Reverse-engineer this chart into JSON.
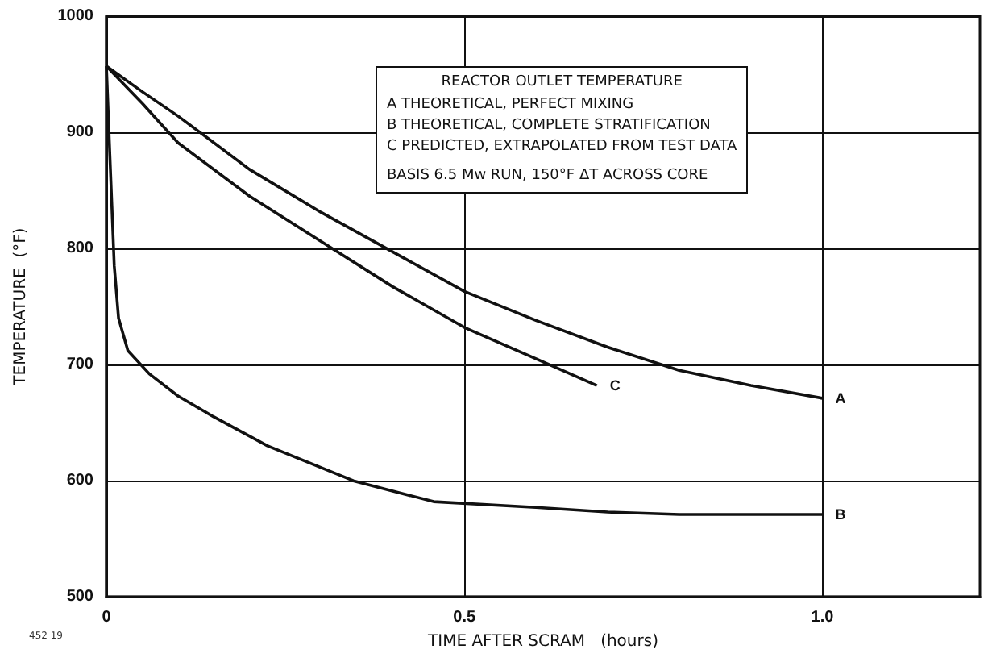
{
  "chart_data": {
    "type": "line",
    "xlabel": "TIME AFTER SCRAM   (hours)",
    "ylabel": "TEMPERATURE  (°F)",
    "xlim": [
      0,
      1.22
    ],
    "xticks": [
      0,
      {
        "value": 0.5,
        "label": "0.5"
      },
      {
        "value": 1,
        "label": "1.0"
      }
    ],
    "ylim": [
      500,
      1000
    ],
    "yticks": [
      500,
      600,
      700,
      800,
      900,
      1000
    ],
    "grid": true,
    "legend": false,
    "marker": "none",
    "line_style": "solid",
    "series": [
      {
        "name": "A",
        "color": "#111111",
        "x": [
          0,
          0.05,
          0.1,
          0.2,
          0.3,
          0.4,
          0.5,
          0.6,
          0.7,
          0.8,
          0.9,
          1.0
        ],
        "values": [
          957,
          935,
          914,
          868,
          831,
          797,
          763,
          738,
          715,
          695,
          682,
          671
        ]
      },
      {
        "name": "B",
        "color": "#111111",
        "x": [
          0,
          0.005,
          0.011,
          0.017,
          0.03,
          0.06,
          0.1,
          0.15,
          0.225,
          0.345,
          0.457,
          0.6,
          0.7,
          0.8,
          0.9,
          1.0
        ],
        "values": [
          957,
          878,
          785,
          740,
          712,
          692,
          673,
          655,
          630,
          600,
          582,
          577,
          573,
          571,
          571,
          571
        ]
      },
      {
        "name": "C",
        "color": "#111111",
        "x": [
          0,
          0.05,
          0.1,
          0.2,
          0.3,
          0.4,
          0.5,
          0.6,
          0.685
        ],
        "values": [
          957,
          925,
          891,
          845,
          806,
          767,
          732,
          705,
          682
        ]
      }
    ],
    "annotations": [
      "REACTOR OUTLET TEMPERATURE",
      "A  THEORETICAL, PERFECT MIXING",
      "B  THEORETICAL, COMPLETE STRATIFICATION",
      "C  PREDICTED, EXTRAPOLATED FROM TEST DATA",
      "BASIS  6.5 Mw RUN, 150°F  ΔT ACROSS CORE",
      "452 19"
    ]
  }
}
